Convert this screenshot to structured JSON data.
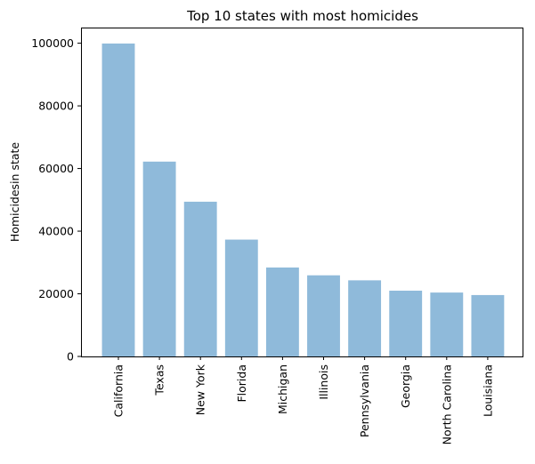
{
  "chart_data": {
    "type": "bar",
    "title": "Top 10 states with most homicides",
    "xlabel": "",
    "ylabel": "Homicidesin state",
    "categories": [
      "California",
      "Texas",
      "New York",
      "Florida",
      "Michigan",
      "Illinois",
      "Pennsylvania",
      "Georgia",
      "North Carolina",
      "Louisiana"
    ],
    "values": [
      99900,
      62200,
      49400,
      37300,
      28400,
      25900,
      24300,
      21000,
      20400,
      19600
    ],
    "ylim": [
      0,
      105000
    ],
    "yticks": [
      0,
      20000,
      40000,
      60000,
      80000,
      100000
    ],
    "bar_color": "#8fbada",
    "grid": false,
    "legend": "none"
  }
}
